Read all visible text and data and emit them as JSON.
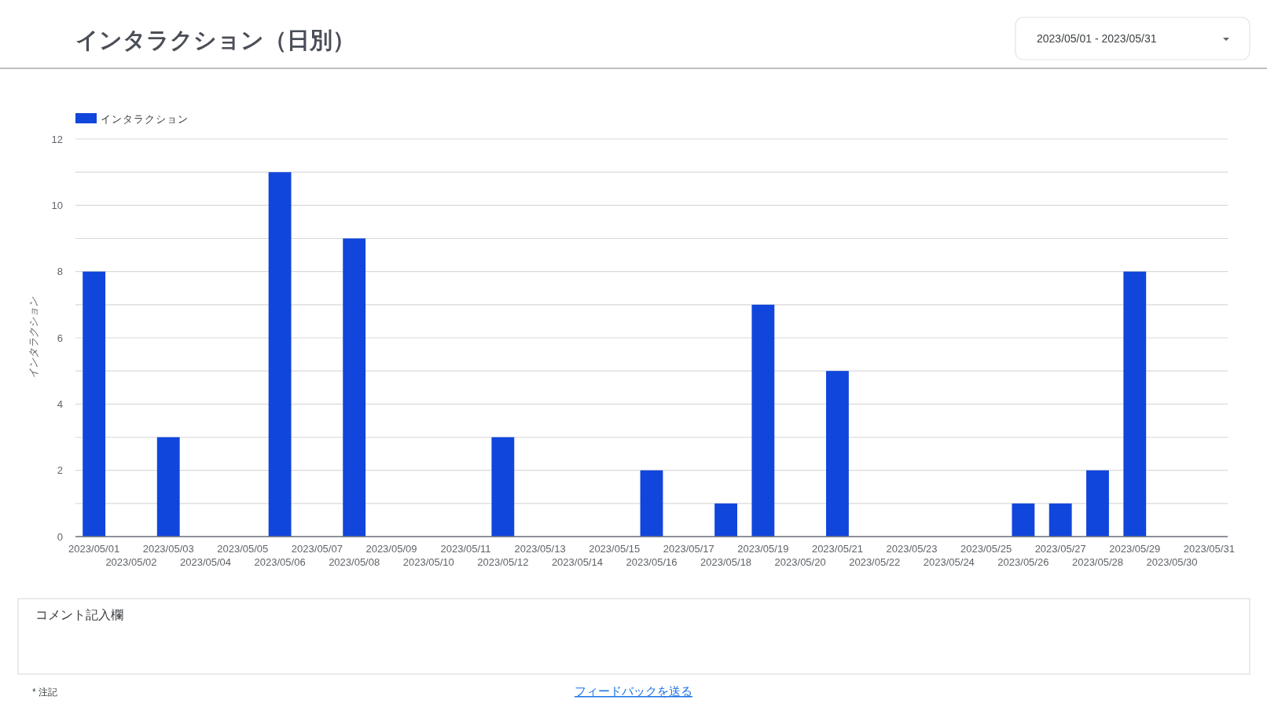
{
  "chart_data": {
    "type": "bar",
    "title": "インタラクション（日別）",
    "ylabel": "インタラクション",
    "categories": [
      "2023/05/01",
      "2023/05/02",
      "2023/05/03",
      "2023/05/04",
      "2023/05/05",
      "2023/05/06",
      "2023/05/07",
      "2023/05/08",
      "2023/05/09",
      "2023/05/10",
      "2023/05/11",
      "2023/05/12",
      "2023/05/13",
      "2023/05/14",
      "2023/05/15",
      "2023/05/16",
      "2023/05/17",
      "2023/05/18",
      "2023/05/19",
      "2023/05/20",
      "2023/05/21",
      "2023/05/22",
      "2023/05/23",
      "2023/05/24",
      "2023/05/25",
      "2023/05/26",
      "2023/05/27",
      "2023/05/28",
      "2023/05/29",
      "2023/05/30",
      "2023/05/31"
    ],
    "series": [
      {
        "name": "インタラクション",
        "color": "#1146dc",
        "values": [
          8,
          0,
          3,
          0,
          0,
          11,
          0,
          9,
          0,
          0,
          0,
          3,
          0,
          0,
          0,
          2,
          0,
          1,
          7,
          0,
          5,
          0,
          0,
          0,
          0,
          1,
          1,
          2,
          8,
          0,
          0
        ]
      }
    ],
    "ylim": [
      0,
      12
    ],
    "yticks": [
      0,
      {
        "value": 1,
        "label": null
      },
      2,
      {
        "value": 3,
        "label": null
      },
      4,
      {
        "value": 5,
        "label": null
      },
      6,
      {
        "value": 7,
        "label": null
      },
      8,
      {
        "value": 9,
        "label": null
      },
      10,
      {
        "value": 11,
        "label": null
      },
      12
    ],
    "grid": "y",
    "legend": "top left",
    "annotations": [
      "2023/05/01 - 2023/05/31",
      "コメント記入欄",
      "* 注記",
      "フィードバックを送る"
    ]
  }
}
